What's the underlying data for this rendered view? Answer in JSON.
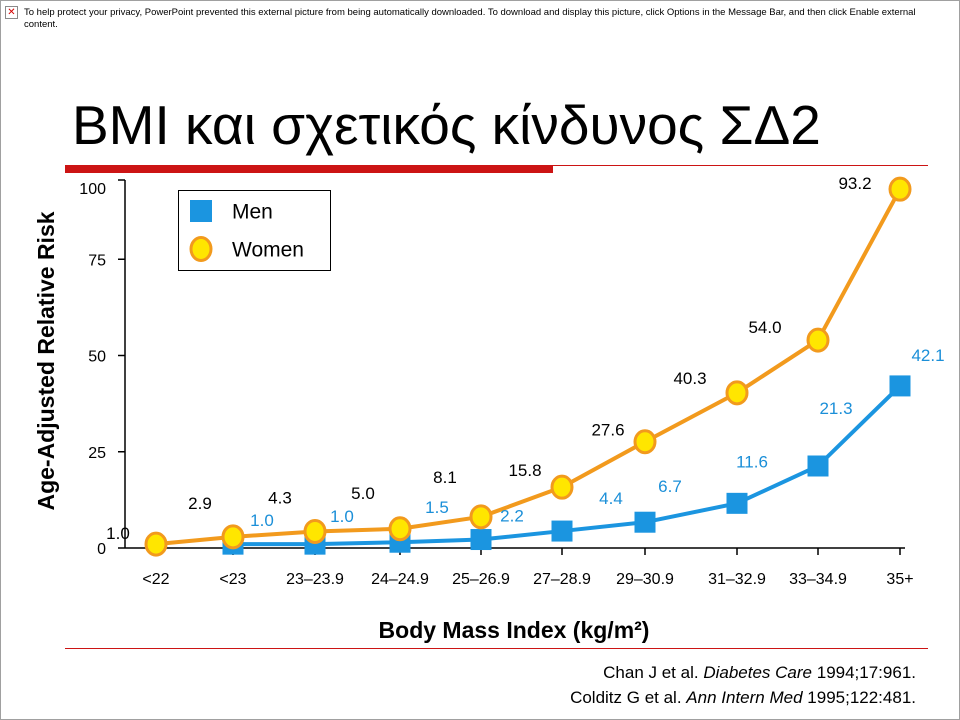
{
  "notice": {
    "icon": "broken-image-icon",
    "text": "To help protect your privacy, PowerPoint prevented this external picture from being automatically downloaded. To download and display this picture, click Options in the Message Bar, and then click Enable external content."
  },
  "slide": {
    "title": "BMI και σχετικός κίνδυνος ΣΔ2",
    "citations": [
      {
        "authors": "Chan J et al.",
        "journal": "Diabetes Care",
        "details": "1994;17:961."
      },
      {
        "authors": "Colditz G et al.",
        "journal": "Ann Intern Med",
        "details": "1995;122:481."
      }
    ]
  },
  "colors": {
    "accent": "#cc1414"
  },
  "chart_data": {
    "type": "line",
    "xlabel": "Body Mass Index (kg/m²)",
    "ylabel": "Age-Adjusted Relative Risk",
    "categories": [
      "<22",
      "<23",
      "23–23.9",
      "24–24.9",
      "25–26.9",
      "27–28.9",
      "29–30.9",
      "31–32.9",
      "33–34.9",
      "35+"
    ],
    "ylim": [
      0,
      100
    ],
    "yticks": [
      0,
      25,
      50,
      75,
      100
    ],
    "grid": false,
    "legend": "top-left",
    "series": [
      {
        "name": "Men",
        "values": [
          null,
          1.0,
          1.0,
          1.5,
          2.2,
          4.4,
          6.7,
          11.6,
          21.3,
          42.1
        ],
        "labels": [
          null,
          "1.0",
          "1.0",
          "1.5",
          "2.2",
          "4.4",
          "6.7",
          "11.6",
          "21.3",
          "42.1"
        ],
        "color": "#1b95e0",
        "label_color": "#1b8fd8"
      },
      {
        "name": "Women",
        "values": [
          1.0,
          2.9,
          4.3,
          5.0,
          8.1,
          15.8,
          27.6,
          40.3,
          54.0,
          93.2
        ],
        "labels": [
          "1.0",
          "2.9",
          "4.3",
          "5.0",
          "8.1",
          "15.8",
          "27.6",
          "40.3",
          "54.0",
          "93.2"
        ],
        "color": "#f29a1d",
        "marker_fill": "#ffe600",
        "label_color": "#000000"
      }
    ]
  }
}
